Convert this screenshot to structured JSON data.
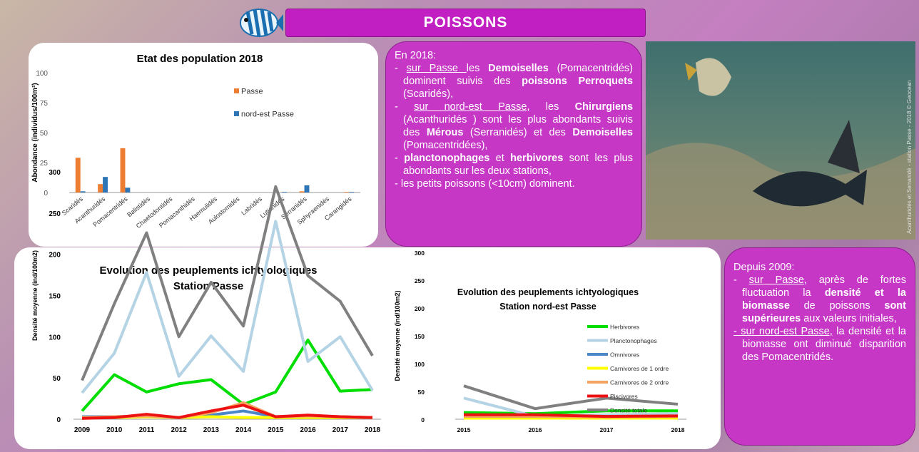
{
  "header": {
    "title": "POISSONS"
  },
  "chart_data": [
    {
      "type": "bar",
      "title": "Etat des population 2018",
      "ylabel": "Abondance (individus/100m²)",
      "categories": [
        "Scaridés",
        "Acanthuridés",
        "Pomacentridés",
        "Balistidés",
        "Chaetodontidés",
        "Pomacanthidés",
        "Haemulidés",
        "Aulostomidés",
        "Labridés",
        "Lutjanidés",
        "Serranidés",
        "Sphyraenidés",
        "Carangidés"
      ],
      "series": [
        {
          "name": "Passe",
          "color": "#ed7d31",
          "values": [
            29,
            7,
            37,
            0,
            0,
            0,
            0,
            0,
            0,
            0,
            1,
            0,
            0.5
          ]
        },
        {
          "name": "nord-est Passe",
          "color": "#2e75b6",
          "values": [
            1,
            13,
            4,
            0,
            0,
            0,
            0,
            0,
            0,
            0.5,
            6,
            0,
            0.5
          ]
        }
      ],
      "ylim": [
        0,
        100
      ],
      "yticks": [
        0,
        25,
        50,
        75,
        100
      ],
      "grid": false
    },
    {
      "type": "line",
      "title": "Evolution des peuplements ichtyologiques",
      "subtitle": "Station Passe",
      "ylabel": "Densité moyenne (ind/100m2)",
      "categories": [
        "2009",
        "2010",
        "2011",
        "2012",
        "2013",
        "2014",
        "2015",
        "2016",
        "2017",
        "2018"
      ],
      "series": [
        {
          "color": "#00dd00",
          "values": [
            10,
            54,
            33,
            43,
            48,
            18,
            33,
            96,
            34,
            36
          ]
        },
        {
          "color": "#b4d3e4",
          "values": [
            32,
            80,
            178,
            52,
            101,
            58,
            240,
            70,
            100,
            35
          ]
        },
        {
          "color": "#4a86c8",
          "values": [
            3,
            3,
            4,
            2,
            5,
            10,
            3,
            4,
            3,
            2
          ]
        },
        {
          "color": "#ffff00",
          "values": [
            2,
            2,
            3,
            2,
            3,
            2,
            2,
            2,
            2,
            2
          ]
        },
        {
          "color": "#f4a460",
          "values": [
            2,
            3,
            4,
            2,
            8,
            20,
            3,
            4,
            3,
            2
          ]
        },
        {
          "color": "#ee1111",
          "values": [
            1,
            2,
            6,
            2,
            10,
            17,
            3,
            5,
            3,
            2
          ]
        },
        {
          "color": "#808080",
          "values": [
            47,
            140,
            226,
            100,
            166,
            113,
            282,
            174,
            143,
            77
          ]
        }
      ],
      "ylim": [
        0,
        300
      ],
      "yticks": [
        0,
        50,
        100,
        150,
        200,
        250,
        300
      ],
      "grid": false
    },
    {
      "type": "line",
      "title": "Evolution des peuplements ichtyologiques",
      "subtitle": "Station nord-est Passe",
      "ylabel": "Densité moyenne (ind/100m2)",
      "categories": [
        "2015",
        "2016",
        "2017",
        "2018"
      ],
      "series": [
        {
          "name": "Herbivores",
          "color": "#00dd00",
          "values": [
            12,
            10,
            15,
            15
          ]
        },
        {
          "name": "Planctonophages",
          "color": "#b4d3e4",
          "values": [
            38,
            5,
            8,
            10
          ]
        },
        {
          "name": "Omnivores",
          "color": "#4a86c8",
          "values": [
            5,
            5,
            5,
            5
          ]
        },
        {
          "name": "Carnivores de 1 ordre",
          "color": "#ffff00",
          "values": [
            2,
            2,
            2,
            2
          ]
        },
        {
          "name": "Carnivores de 2 ordre",
          "color": "#f4a460",
          "values": [
            5,
            5,
            4,
            5
          ]
        },
        {
          "name": "Piscivores",
          "color": "#ee1111",
          "values": [
            8,
            8,
            5,
            6
          ]
        },
        {
          "name": "Densité totale",
          "color": "#808080",
          "values": [
            60,
            19,
            38,
            27
          ]
        }
      ],
      "ylim": [
        0,
        300
      ],
      "yticks": [
        0,
        50,
        100,
        150,
        200,
        250,
        300
      ],
      "grid": false
    }
  ],
  "text_box_1": {
    "heading": "En 2018:",
    "items": [
      [
        {
          "text": "- "
        },
        {
          "text": "sur Passe ",
          "style": "u"
        },
        {
          "text": "les "
        },
        {
          "text": "Demoiselles",
          "style": "b"
        },
        {
          "text": " (Pomacentridés) dominent  suivis des "
        },
        {
          "text": "poissons Perroquets",
          "style": "b"
        },
        {
          "text": " (Scaridés),"
        }
      ],
      [
        {
          "text": "- "
        },
        {
          "text": "sur nord-est Passe",
          "style": "u"
        },
        {
          "text": ", les "
        },
        {
          "text": "Chirurgiens",
          "style": "b"
        },
        {
          "text": " (Acanthuridés ) sont les plus abondants suivis des "
        },
        {
          "text": "Mérous",
          "style": "b"
        },
        {
          "text": " (Serranidés) et des "
        },
        {
          "text": "Demoiselles",
          "style": "b"
        },
        {
          "text": " (Pomacentridées),"
        }
      ],
      [
        {
          "text": "- "
        },
        {
          "text": "planctonophages",
          "style": "b"
        },
        {
          "text": " et "
        },
        {
          "text": "herbivores",
          "style": "b"
        },
        {
          "text": " sont les plus abondants sur les deux stations,"
        }
      ],
      [
        {
          "text": "- les petits poissons (<10cm) dominent."
        }
      ]
    ]
  },
  "photo": {
    "caption": "Acanthuridés et Serranidé - station Passe - 2018 © Geocean"
  },
  "text_box_2": {
    "heading": "Depuis 2009:",
    "items": [
      [
        {
          "text": "- "
        },
        {
          "text": "sur Passe",
          "style": "u"
        },
        {
          "text": ", après de fortes fluctuation la "
        },
        {
          "text": "densité et la biomasse",
          "style": "b"
        },
        {
          "text": " de poissons "
        },
        {
          "text": "sont supérieures",
          "style": "b"
        },
        {
          "text": " aux valeurs initiales,"
        }
      ],
      [
        {
          "text": "- sur nord-est Passe,",
          "style": "u"
        },
        {
          "text": " la densité et la biomasse ont diminué disparition des Pomacentridés."
        }
      ]
    ]
  }
}
